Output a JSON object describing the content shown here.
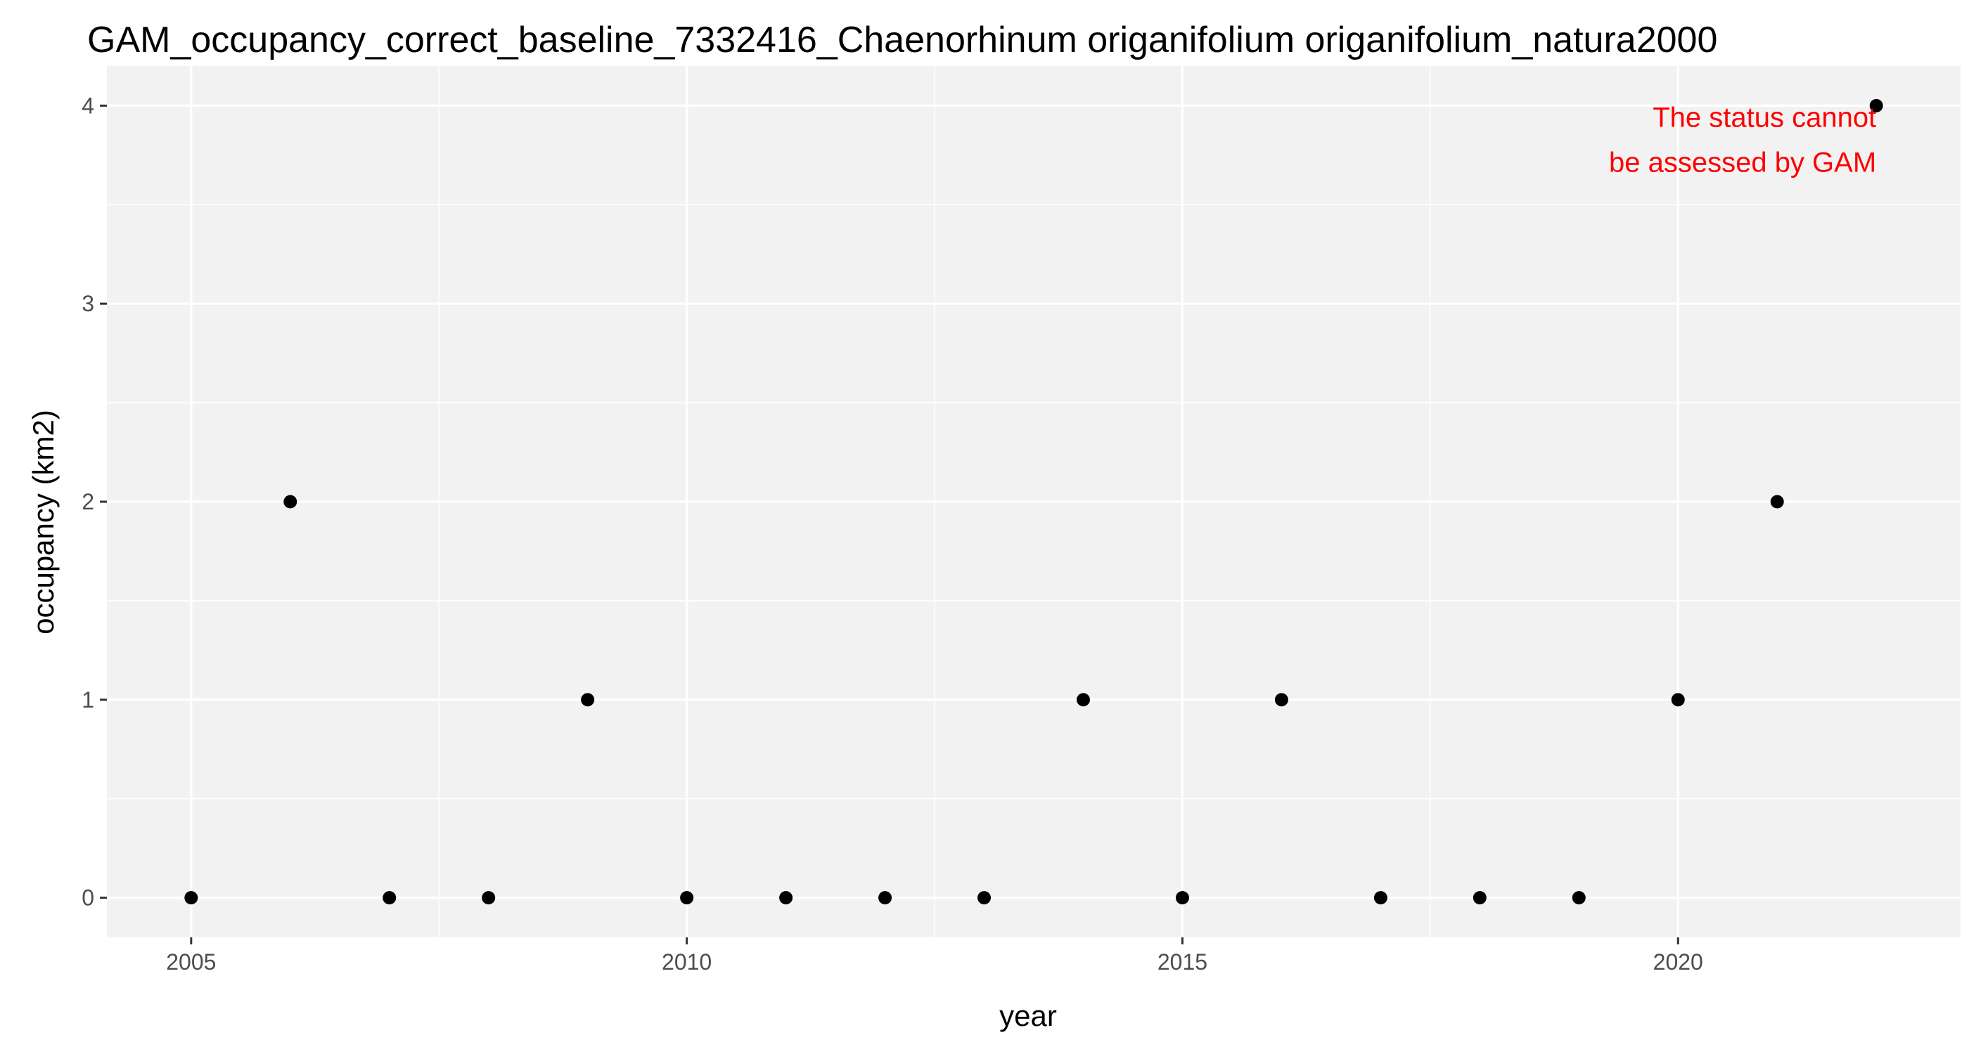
{
  "chart_data": {
    "type": "scatter",
    "title": "GAM_occupancy_correct_baseline_7332416_Chaenorhinum origanifolium origanifolium_natura2000",
    "xlabel": "year",
    "ylabel": "occupancy (km2)",
    "x_ticks": [
      "2005",
      "2010",
      "2015",
      "2020"
    ],
    "y_ticks": [
      "0",
      "1",
      "2",
      "3",
      "4"
    ],
    "xlim": [
      2004.15,
      2022.85
    ],
    "ylim": [
      -0.2,
      4.2
    ],
    "grid": true,
    "legend": "none",
    "x": [
      2005,
      2006,
      2007,
      2008,
      2009,
      2010,
      2011,
      2012,
      2013,
      2014,
      2015,
      2016,
      2017,
      2018,
      2019,
      2020,
      2021,
      2022
    ],
    "y": [
      0,
      2,
      0,
      0,
      1,
      0,
      0,
      0,
      0,
      1,
      0,
      1,
      0,
      0,
      0,
      1,
      2,
      4
    ],
    "annotation": {
      "lines": [
        "The status cannot",
        "be assessed by GAM"
      ],
      "x": 2022,
      "y": 4,
      "color": "#ff0000"
    },
    "colors": {
      "panel_background": "#f2f2f2",
      "grid": "#ffffff",
      "point": "#000000"
    }
  }
}
